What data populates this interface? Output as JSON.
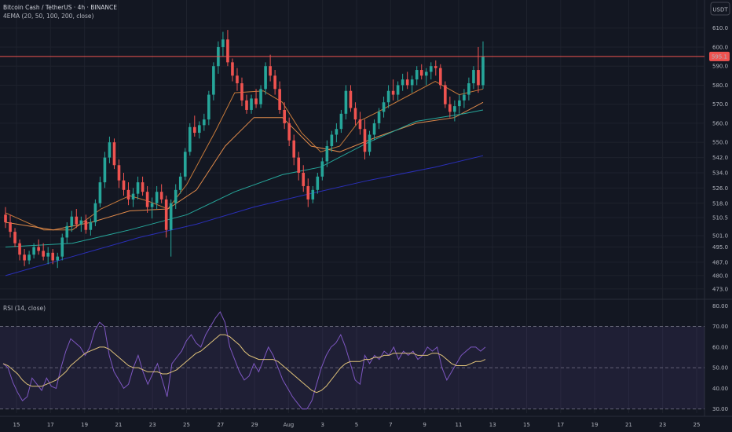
{
  "header": {
    "title": "Bitcoin Cash / TetherUS · 4h · BINANCE",
    "indicator": "4EMA (20, 50, 100, 200, close)",
    "currency_button": "USDT"
  },
  "rsi": {
    "label": "RSI (14, close)"
  },
  "chart_data": [
    {
      "type": "candlestick",
      "title": "Bitcoin Cash / TetherUS · 4h · BINANCE",
      "ylabel": "USDT",
      "ylim": [
        468,
        614
      ],
      "yticks": [
        "610.0",
        "600.0",
        "590.0",
        "580.0",
        "570.0",
        "560.0",
        "550.0",
        "542.0",
        "534.0",
        "526.0",
        "518.0",
        "510.5",
        "501.0",
        "495.0",
        "487.0",
        "480.0",
        "473.0"
      ],
      "xticks": [
        "15",
        "17",
        "19",
        "21",
        "23",
        "25",
        "27",
        "29",
        "Aug",
        "3",
        "5",
        "7",
        "9",
        "11",
        "13",
        "15",
        "17",
        "19",
        "21",
        "23",
        "25"
      ],
      "last_price": "595.1",
      "last_price_value": 595.1,
      "colors": {
        "up": "#26a69a",
        "down": "#ef5350",
        "price_line": "#ef5350",
        "background": "#131722"
      },
      "candles": [
        [
          512,
          516,
          505,
          508
        ],
        [
          508,
          512,
          500,
          503
        ],
        [
          503,
          505,
          495,
          497
        ],
        [
          497,
          499,
          488,
          491
        ],
        [
          491,
          494,
          485,
          488
        ],
        [
          488,
          493,
          486,
          491
        ],
        [
          491,
          497,
          489,
          495
        ],
        [
          495,
          499,
          491,
          493
        ],
        [
          493,
          497,
          488,
          490
        ],
        [
          490,
          495,
          486,
          492
        ],
        [
          492,
          494,
          486,
          488
        ],
        [
          488,
          492,
          484,
          490
        ],
        [
          490,
          502,
          488,
          500
        ],
        [
          500,
          508,
          497,
          506
        ],
        [
          506,
          514,
          503,
          511
        ],
        [
          511,
          515,
          505,
          507
        ],
        [
          507,
          511,
          503,
          509
        ],
        [
          509,
          512,
          502,
          504
        ],
        [
          504,
          510,
          501,
          508
        ],
        [
          508,
          520,
          506,
          518
        ],
        [
          518,
          532,
          516,
          529
        ],
        [
          529,
          545,
          526,
          542
        ],
        [
          542,
          553,
          539,
          550
        ],
        [
          550,
          552,
          536,
          538
        ],
        [
          538,
          541,
          526,
          530
        ],
        [
          530,
          534,
          522,
          525
        ],
        [
          525,
          529,
          517,
          520
        ],
        [
          520,
          526,
          516,
          523
        ],
        [
          523,
          532,
          520,
          529
        ],
        [
          529,
          532,
          522,
          524
        ],
        [
          524,
          527,
          513,
          516
        ],
        [
          516,
          521,
          510,
          518
        ],
        [
          518,
          527,
          515,
          524
        ],
        [
          524,
          528,
          518,
          520
        ],
        [
          520,
          522,
          500,
          504
        ],
        [
          504,
          520,
          490,
          518
        ],
        [
          518,
          528,
          515,
          525
        ],
        [
          525,
          534,
          523,
          532
        ],
        [
          532,
          547,
          530,
          545
        ],
        [
          545,
          560,
          543,
          558
        ],
        [
          558,
          564,
          553,
          555
        ],
        [
          555,
          561,
          552,
          559
        ],
        [
          559,
          565,
          556,
          562
        ],
        [
          562,
          577,
          559,
          575
        ],
        [
          575,
          592,
          572,
          590
        ],
        [
          590,
          603,
          586,
          600
        ],
        [
          600,
          608,
          595,
          604
        ],
        [
          604,
          609,
          590,
          592
        ],
        [
          592,
          594,
          582,
          585
        ],
        [
          585,
          589,
          577,
          581
        ],
        [
          581,
          584,
          569,
          572
        ],
        [
          572,
          575,
          565,
          567
        ],
        [
          567,
          575,
          565,
          573
        ],
        [
          573,
          578,
          568,
          570
        ],
        [
          570,
          580,
          568,
          578
        ],
        [
          578,
          592,
          575,
          590
        ],
        [
          590,
          596,
          582,
          585
        ],
        [
          585,
          588,
          575,
          578
        ],
        [
          578,
          582,
          565,
          567
        ],
        [
          567,
          571,
          557,
          560
        ],
        [
          560,
          563,
          548,
          551
        ],
        [
          551,
          554,
          538,
          542
        ],
        [
          542,
          545,
          530,
          534
        ],
        [
          534,
          538,
          524,
          527
        ],
        [
          527,
          531,
          516,
          520
        ],
        [
          520,
          527,
          518,
          525
        ],
        [
          525,
          534,
          523,
          532
        ],
        [
          532,
          542,
          530,
          540
        ],
        [
          540,
          551,
          537,
          548
        ],
        [
          548,
          556,
          545,
          554
        ],
        [
          554,
          560,
          550,
          557
        ],
        [
          557,
          567,
          555,
          565
        ],
        [
          565,
          580,
          562,
          577
        ],
        [
          577,
          580,
          566,
          568
        ],
        [
          568,
          571,
          559,
          562
        ],
        [
          562,
          566,
          554,
          557
        ],
        [
          557,
          562,
          541,
          545
        ],
        [
          545,
          556,
          543,
          554
        ],
        [
          554,
          562,
          551,
          560
        ],
        [
          560,
          568,
          557,
          566
        ],
        [
          566,
          574,
          563,
          571
        ],
        [
          571,
          580,
          568,
          577
        ],
        [
          577,
          583,
          572,
          575
        ],
        [
          575,
          582,
          572,
          580
        ],
        [
          580,
          586,
          577,
          583
        ],
        [
          583,
          587,
          578,
          580
        ],
        [
          580,
          585,
          576,
          583
        ],
        [
          583,
          590,
          580,
          588
        ],
        [
          588,
          591,
          583,
          585
        ],
        [
          585,
          589,
          580,
          587
        ],
        [
          587,
          592,
          583,
          590
        ],
        [
          590,
          593,
          585,
          589
        ],
        [
          589,
          591,
          578,
          580
        ],
        [
          580,
          582,
          568,
          570
        ],
        [
          570,
          574,
          563,
          566
        ],
        [
          566,
          572,
          561,
          569
        ],
        [
          569,
          575,
          565,
          572
        ],
        [
          572,
          578,
          568,
          575
        ],
        [
          575,
          584,
          572,
          581
        ],
        [
          581,
          590,
          578,
          588
        ],
        [
          588,
          600,
          576,
          580
        ],
        [
          580,
          603,
          578,
          595
        ]
      ],
      "series": [
        {
          "name": "EMA 20",
          "color": "#c77a3b",
          "values": [
            [
              0,
              513
            ],
            [
              8,
              504
            ],
            [
              14,
              504
            ],
            [
              20,
              515
            ],
            [
              26,
              522
            ],
            [
              30,
              519
            ],
            [
              34,
              515
            ],
            [
              38,
              528
            ],
            [
              44,
              556
            ],
            [
              48,
              576
            ],
            [
              54,
              577
            ],
            [
              58,
              571
            ],
            [
              62,
              555
            ],
            [
              66,
              545
            ],
            [
              70,
              548
            ],
            [
              74,
              561
            ],
            [
              78,
              566
            ],
            [
              84,
              574
            ],
            [
              90,
              582
            ],
            [
              95,
              575
            ],
            [
              100,
              578
            ]
          ]
        },
        {
          "name": "EMA 50",
          "color": "#e08a4b",
          "values": [
            [
              0,
              508
            ],
            [
              10,
              504
            ],
            [
              18,
              508
            ],
            [
              26,
              514
            ],
            [
              34,
              515
            ],
            [
              40,
              525
            ],
            [
              46,
              548
            ],
            [
              52,
              563
            ],
            [
              58,
              563
            ],
            [
              64,
              548
            ],
            [
              70,
              545
            ],
            [
              78,
              553
            ],
            [
              86,
              560
            ],
            [
              94,
              563
            ],
            [
              100,
              571
            ]
          ]
        },
        {
          "name": "EMA 100",
          "color": "#26a69a",
          "values": [
            [
              0,
              495
            ],
            [
              14,
              497
            ],
            [
              26,
              504
            ],
            [
              38,
              512
            ],
            [
              48,
              524
            ],
            [
              58,
              533
            ],
            [
              66,
              537
            ],
            [
              76,
              550
            ],
            [
              86,
              561
            ],
            [
              96,
              565
            ],
            [
              100,
              567
            ]
          ]
        },
        {
          "name": "EMA 200",
          "color": "#2a2fb8",
          "values": [
            [
              0,
              480
            ],
            [
              14,
              490
            ],
            [
              28,
              500
            ],
            [
              40,
              507
            ],
            [
              52,
              516
            ],
            [
              62,
              522
            ],
            [
              76,
              530
            ],
            [
              90,
              537
            ],
            [
              100,
              543
            ]
          ]
        }
      ]
    },
    {
      "type": "line",
      "title": "RSI (14, close)",
      "ylim": [
        28,
        82
      ],
      "yticks": [
        "80.00",
        "70.00",
        "60.00",
        "50.00",
        "40.00",
        "30.00"
      ],
      "band": [
        30,
        70
      ],
      "series": [
        {
          "name": "RSI",
          "color": "#7e57c2",
          "values": [
            52,
            50,
            43,
            38,
            34,
            36,
            45,
            42,
            39,
            45,
            41,
            40,
            50,
            58,
            64,
            62,
            60,
            56,
            60,
            68,
            72,
            70,
            56,
            48,
            44,
            40,
            42,
            50,
            56,
            48,
            42,
            47,
            52,
            44,
            36,
            52,
            55,
            58,
            63,
            66,
            62,
            60,
            66,
            70,
            74,
            77,
            72,
            60,
            54,
            48,
            44,
            46,
            52,
            48,
            54,
            60,
            56,
            50,
            44,
            40,
            36,
            33,
            30,
            30,
            34,
            42,
            50,
            56,
            60,
            62,
            66,
            60,
            52,
            44,
            42,
            56,
            52,
            56,
            54,
            58,
            56,
            60,
            54,
            58,
            56,
            58,
            54,
            56,
            60,
            58,
            60,
            50,
            44,
            48,
            52,
            56,
            58,
            60,
            60,
            58,
            60
          ]
        },
        {
          "name": "RSI MA",
          "color": "#e0c37a",
          "values": [
            52,
            51,
            49,
            47,
            44,
            42,
            41,
            41,
            41,
            42,
            43,
            44,
            46,
            48,
            51,
            53,
            55,
            57,
            58,
            59,
            60,
            60,
            59,
            57,
            55,
            53,
            51,
            50,
            50,
            49,
            48,
            48,
            48,
            47,
            47,
            48,
            49,
            51,
            53,
            55,
            57,
            58,
            60,
            62,
            64,
            66,
            66,
            65,
            63,
            61,
            58,
            56,
            55,
            54,
            54,
            54,
            54,
            53,
            51,
            49,
            47,
            45,
            43,
            41,
            39,
            38,
            39,
            41,
            44,
            47,
            50,
            52,
            53,
            53,
            53,
            54,
            54,
            55,
            55,
            56,
            56,
            57,
            57,
            57,
            57,
            57,
            56,
            56,
            56,
            57,
            57,
            56,
            54,
            52,
            51,
            51,
            51,
            52,
            53,
            53,
            54
          ]
        }
      ]
    }
  ]
}
